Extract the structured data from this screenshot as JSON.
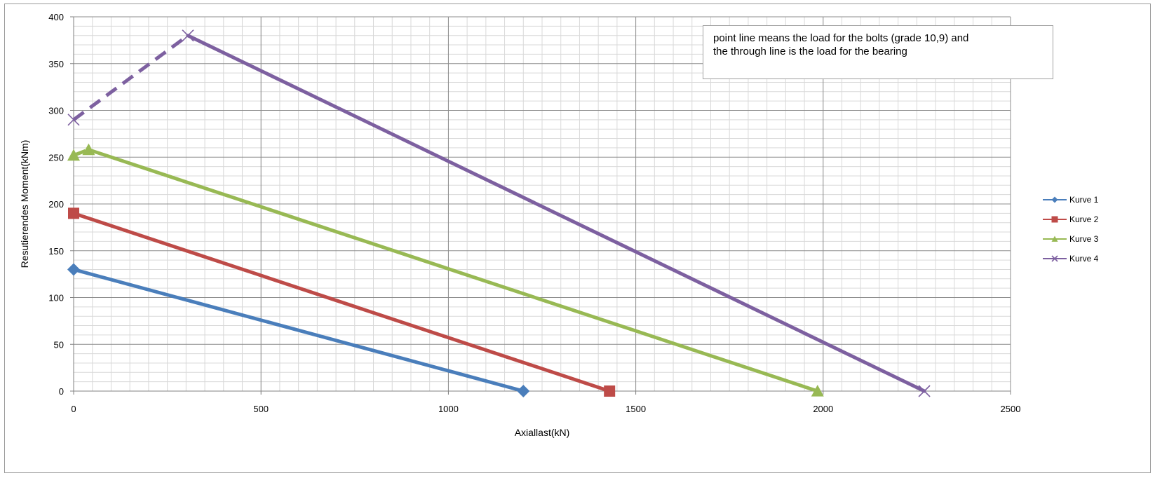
{
  "chart_data": {
    "type": "line",
    "xlabel": "Axiallast(kN)",
    "ylabel": "Resutierendes Moment(kNm)",
    "xlim": [
      0,
      2500
    ],
    "ylim": [
      0,
      400
    ],
    "x_ticks": [
      "0",
      "500",
      "1000",
      "1500",
      "2000",
      "2500"
    ],
    "y_ticks": [
      "0",
      "50",
      "100",
      "150",
      "200",
      "250",
      "300",
      "350",
      "400"
    ],
    "grid": true,
    "legend_position": "right",
    "annotation": {
      "line1": "point line means the load for the bolts (grade 10,9) and",
      "line2": "the through line is the load for the bearing"
    },
    "series": [
      {
        "name": "Kurve 1",
        "color": "#4a7ebb",
        "marker": "diamond",
        "points": [
          {
            "x": 0,
            "y": 130
          },
          {
            "x": 1200,
            "y": 0
          }
        ]
      },
      {
        "name": "Kurve 2",
        "color": "#be4b48",
        "marker": "square",
        "points": [
          {
            "x": 0,
            "y": 190
          },
          {
            "x": 1430,
            "y": 0
          }
        ]
      },
      {
        "name": "Kurve 3",
        "color": "#98b954",
        "marker": "triangle",
        "points": [
          {
            "x": 0,
            "y": 252
          },
          {
            "x": 40,
            "y": 258
          },
          {
            "x": 1985,
            "y": 0
          }
        ],
        "dashed_segments": [
          0
        ]
      },
      {
        "name": "Kurve 4",
        "color": "#7d60a0",
        "marker": "x",
        "points": [
          {
            "x": 0,
            "y": 290
          },
          {
            "x": 305,
            "y": 380
          },
          {
            "x": 2270,
            "y": 0
          }
        ],
        "dashed_segments": [
          0
        ]
      }
    ]
  }
}
